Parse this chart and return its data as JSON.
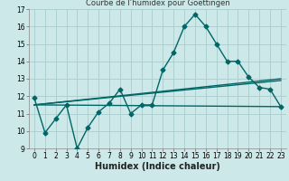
{
  "title": "Courbe de l’humidex pour Goettingen",
  "xlabel": "Humidex (Indice chaleur)",
  "background_color": "#cce8e8",
  "grid_color": "#aacccc",
  "line_color": "#006666",
  "xlim": [
    -0.5,
    23.5
  ],
  "ylim": [
    9,
    17
  ],
  "yticks": [
    9,
    10,
    11,
    12,
    13,
    14,
    15,
    16,
    17
  ],
  "xticks": [
    0,
    1,
    2,
    3,
    4,
    5,
    6,
    7,
    8,
    9,
    10,
    11,
    12,
    13,
    14,
    15,
    16,
    17,
    18,
    19,
    20,
    21,
    22,
    23
  ],
  "line1_x": [
    0,
    1,
    2,
    3,
    4,
    5,
    6,
    7,
    8,
    9,
    10,
    11,
    12,
    13,
    14,
    15,
    16,
    17,
    18,
    19,
    20,
    21,
    22,
    23
  ],
  "line1_y": [
    11.9,
    9.9,
    10.7,
    11.5,
    9.0,
    10.2,
    11.1,
    11.6,
    12.4,
    11.0,
    11.5,
    11.5,
    13.5,
    14.5,
    16.0,
    16.7,
    16.0,
    15.0,
    14.0,
    14.0,
    13.1,
    12.5,
    12.4,
    11.4
  ],
  "line2_x": [
    0,
    23
  ],
  "line2_y": [
    11.5,
    11.4
  ],
  "line3_x": [
    0,
    23
  ],
  "line3_y": [
    11.5,
    13.0
  ],
  "line4_x": [
    0,
    23
  ],
  "line4_y": [
    11.5,
    12.9
  ],
  "marker_size": 2.5,
  "line_width": 1.0,
  "tick_fontsize": 5.5,
  "xlabel_fontsize": 7
}
